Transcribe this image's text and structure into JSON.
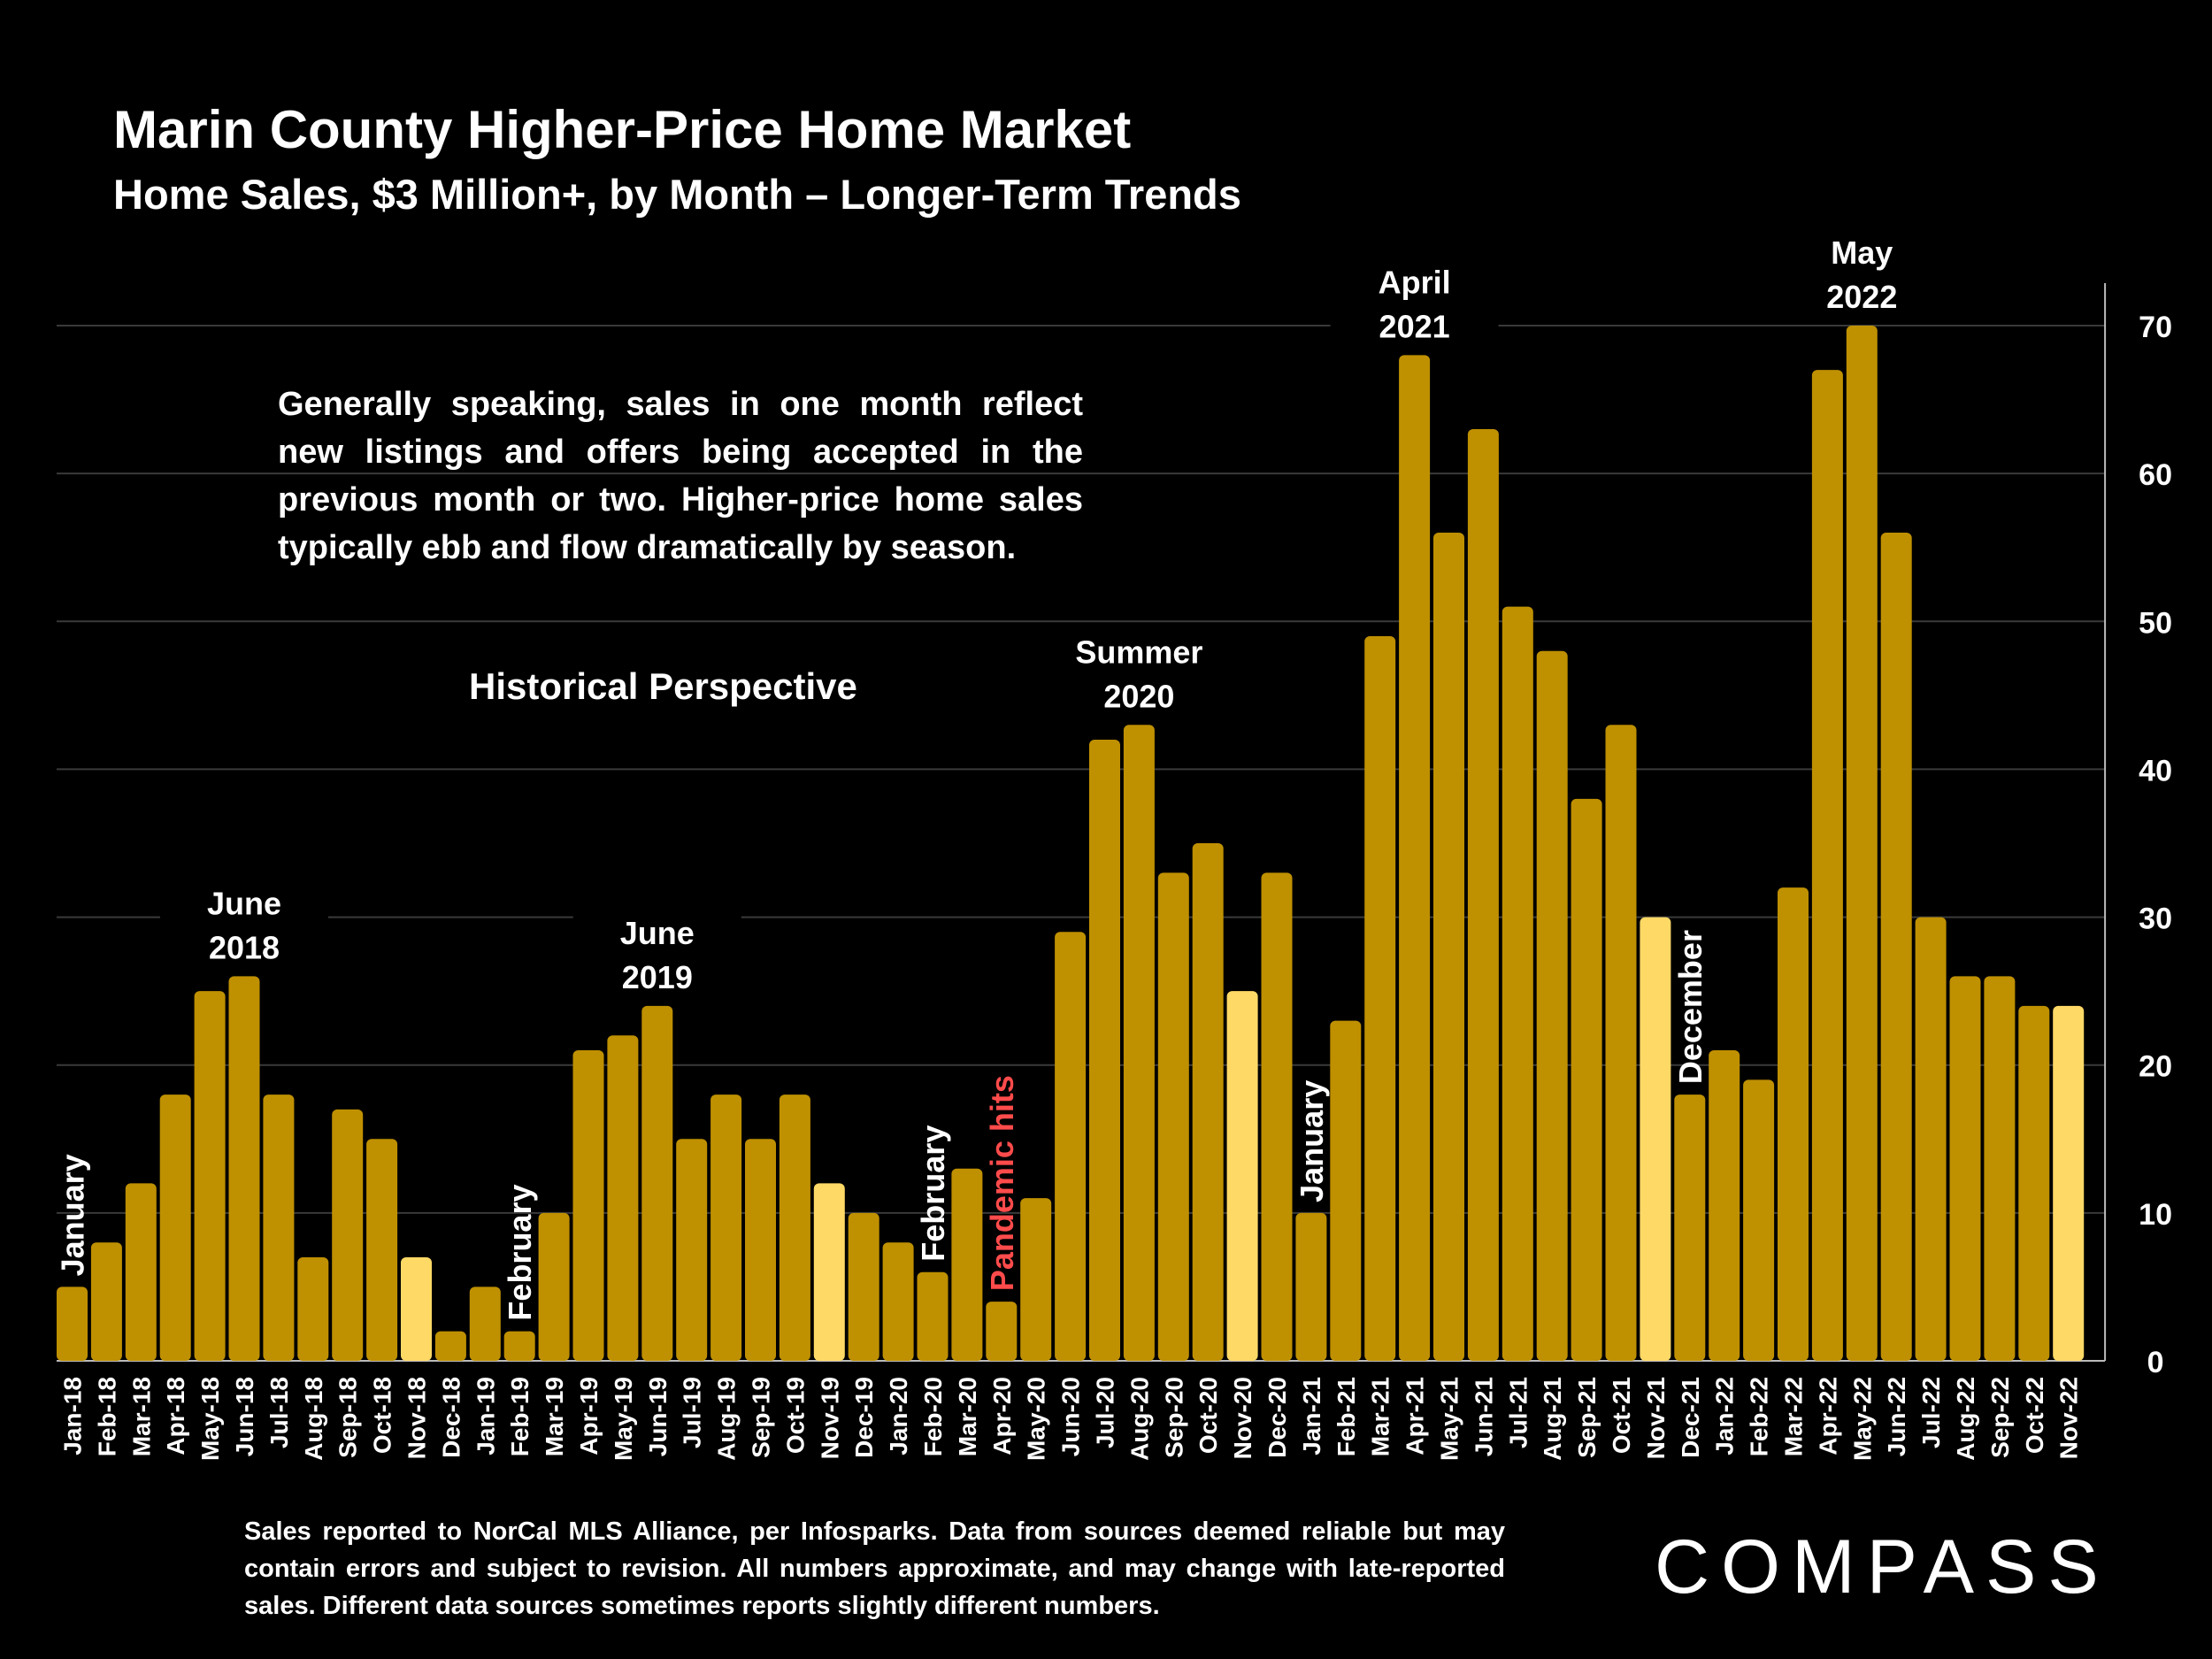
{
  "header": {
    "title": "Marin County Higher-Price Home Market",
    "subtitle": "Home Sales, $3 Million+, by Month – Longer-Term Trends"
  },
  "note": "Generally speaking, sales in one month reflect new listings and offers being accepted in the previous month or two. Higher-price home sales typically ebb and flow dramatically by season.",
  "historical_label": "Historical Perspective",
  "source_note": "Sales reported to NorCal MLS Alliance, per Infosparks. Data from sources deemed reliable but may contain errors and subject to revision. All numbers approximate, and may change with late-reported sales. Different data sources sometimes reports slightly different numbers.",
  "logo": "COMPASS",
  "colors": {
    "bar": "#bf9000",
    "highlight": "#ffd966",
    "grid": "#3a3a3a",
    "pandemic": "#ff4b4b",
    "background": "#000000"
  },
  "chart_data": {
    "type": "bar",
    "title": "Home Sales, $3 Million+, by Month",
    "xlabel": "",
    "ylabel": "",
    "ylim": [
      0,
      70
    ],
    "yticks": [
      0,
      10,
      20,
      30,
      40,
      50,
      60,
      70
    ],
    "y_axis_side": "right",
    "categories": [
      "Jan-18",
      "Feb-18",
      "Mar-18",
      "Apr-18",
      "May-18",
      "Jun-18",
      "Jul-18",
      "Aug-18",
      "Sep-18",
      "Oct-18",
      "Nov-18",
      "Dec-18",
      "Jan-19",
      "Feb-19",
      "Mar-19",
      "Apr-19",
      "May-19",
      "Jun-19",
      "Jul-19",
      "Aug-19",
      "Sep-19",
      "Oct-19",
      "Nov-19",
      "Dec-19",
      "Jan-20",
      "Feb-20",
      "Mar-20",
      "Apr-20",
      "May-20",
      "Jun-20",
      "Jul-20",
      "Aug-20",
      "Sep-20",
      "Oct-20",
      "Nov-20",
      "Dec-20",
      "Jan-21",
      "Feb-21",
      "Mar-21",
      "Apr-21",
      "May-21",
      "Jun-21",
      "Jul-21",
      "Aug-21",
      "Sep-21",
      "Oct-21",
      "Nov-21",
      "Dec-21",
      "Jan-22",
      "Feb-22",
      "Mar-22",
      "Apr-22",
      "May-22",
      "Jun-22",
      "Jul-22",
      "Aug-22",
      "Sep-22",
      "Oct-22",
      "Nov-22"
    ],
    "values": [
      5,
      8,
      12,
      18,
      25,
      26,
      18,
      7,
      17,
      15,
      7,
      2,
      5,
      2,
      10,
      21,
      22,
      24,
      15,
      18,
      15,
      18,
      12,
      10,
      8,
      6,
      13,
      4,
      11,
      29,
      42,
      43,
      33,
      35,
      25,
      33,
      10,
      23,
      49,
      68,
      56,
      63,
      51,
      48,
      38,
      43,
      30,
      18,
      21,
      19,
      32,
      67,
      70,
      56,
      30,
      26,
      26,
      24,
      24
    ],
    "highlighted": [
      "Nov-18",
      "Nov-19",
      "Nov-20",
      "Nov-21",
      "Nov-22"
    ],
    "annotations": [
      {
        "text": "January",
        "at": "Jan-18",
        "rotated": true,
        "color": "white"
      },
      {
        "text": "June\n2018",
        "at": "Jun-18",
        "rotated": false,
        "color": "white"
      },
      {
        "text": "February",
        "at": "Feb-19",
        "rotated": true,
        "color": "white"
      },
      {
        "text": "June\n2019",
        "at": "Jun-19",
        "rotated": false,
        "color": "white"
      },
      {
        "text": "February",
        "at": "Feb-20",
        "rotated": true,
        "color": "white"
      },
      {
        "text": "Pandemic hits",
        "at": "Apr-20",
        "rotated": true,
        "color": "red"
      },
      {
        "text": "Summer\n2020",
        "at": "Aug-20",
        "rotated": false,
        "color": "white"
      },
      {
        "text": "January",
        "at": "Jan-21",
        "rotated": true,
        "color": "white"
      },
      {
        "text": "April\n2021",
        "at": "Apr-21",
        "rotated": false,
        "color": "white"
      },
      {
        "text": "December",
        "at": "Dec-21",
        "rotated": true,
        "color": "white"
      },
      {
        "text": "May\n2022",
        "at": "May-22",
        "rotated": false,
        "color": "white"
      }
    ]
  }
}
